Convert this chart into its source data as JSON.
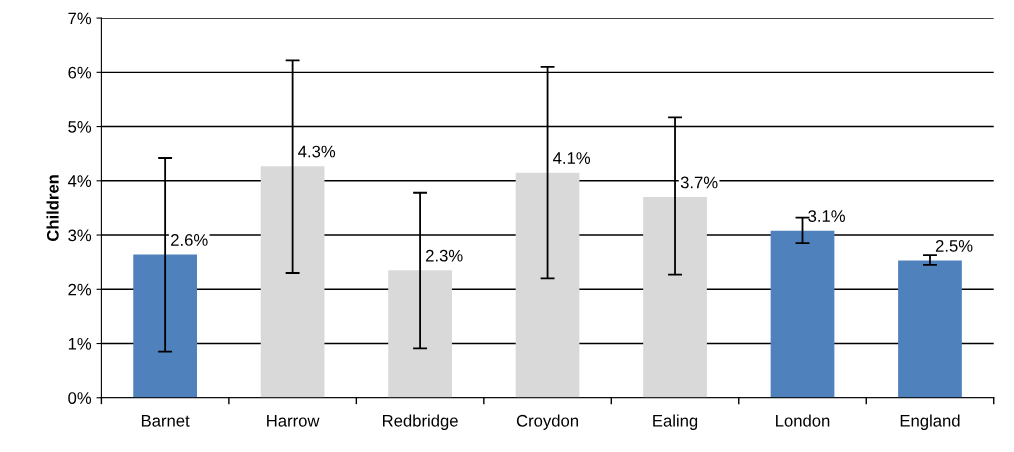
{
  "chart_data": {
    "type": "bar",
    "ylabel": "Children",
    "categories": [
      "Barnet",
      "Harrow",
      "Redbridge",
      "Croydon",
      "Ealing",
      "London",
      "England"
    ],
    "values": [
      2.64,
      4.27,
      2.35,
      4.15,
      3.7,
      3.08,
      2.53
    ],
    "colors": [
      "#4f81bd",
      "#d9d9d9",
      "#d9d9d9",
      "#d9d9d9",
      "#d9d9d9",
      "#4f81bd",
      "#4f81bd"
    ],
    "errors": [
      [
        0.85,
        4.42
      ],
      [
        2.3,
        6.22
      ],
      [
        0.91,
        3.78
      ],
      [
        2.2,
        6.1
      ],
      [
        2.27,
        5.17
      ],
      [
        2.85,
        3.32
      ],
      [
        2.45,
        2.63
      ]
    ],
    "value_labels": [
      "2.6%",
      "4.3%",
      "2.3%",
      "4.1%",
      "3.7%",
      "3.1%",
      "2.5%"
    ],
    "ylim": [
      0,
      7
    ],
    "yticks": [
      {
        "value": 0,
        "label": "0%"
      },
      {
        "value": 1,
        "label": "1%"
      },
      {
        "value": 2,
        "label": "2%"
      },
      {
        "value": 3,
        "label": "3%"
      },
      {
        "value": 4,
        "label": "4%"
      },
      {
        "value": 5,
        "label": "5%"
      },
      {
        "value": 6,
        "label": "6%"
      },
      {
        "value": 7,
        "label": "7%"
      }
    ],
    "grid": "y",
    "legend": false
  }
}
